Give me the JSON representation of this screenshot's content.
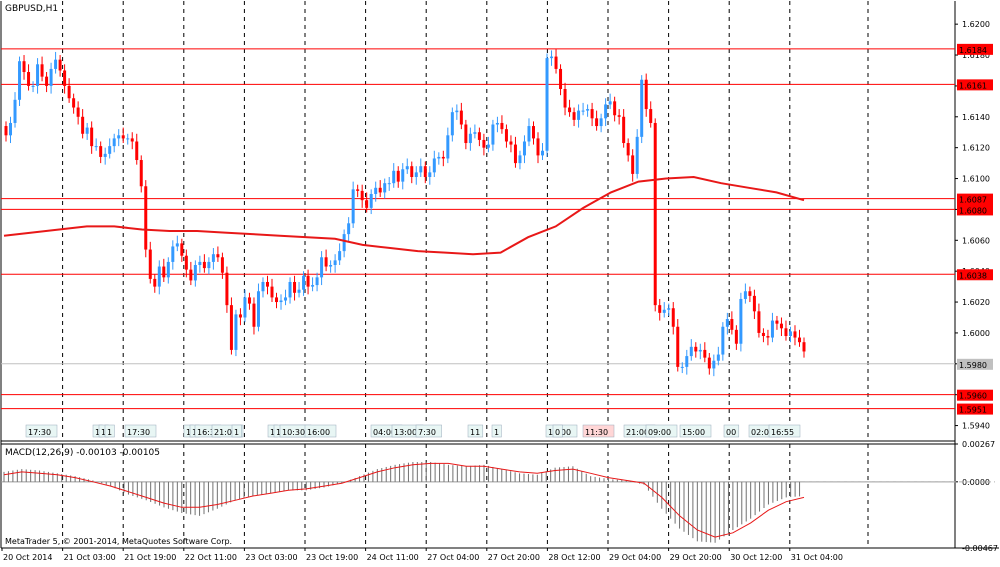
{
  "chart_data": [
    {
      "type": "candlestick",
      "title": "GBPUSD,H1",
      "ylim": [
        1.593,
        1.6215
      ],
      "y_ticks": [
        "1.6200",
        "1.6180",
        "1.6160",
        "1.6140",
        "1.6120",
        "1.6100",
        "1.6080",
        "1.6060",
        "1.6040",
        "1.6020",
        "1.6000",
        "1.5980",
        "1.5960",
        "1.5940"
      ],
      "x_ticks": [
        "20 Oct 2014",
        "21 Oct 03:00",
        "21 Oct 19:00",
        "22 Oct 11:00",
        "23 Oct 03:00",
        "23 Oct 19:00",
        "24 Oct 11:00",
        "27 Oct 04:00",
        "27 Oct 20:00",
        "28 Oct 12:00",
        "29 Oct 04:00",
        "29 Oct 20:00",
        "30 Oct 12:00",
        "31 Oct 04:00"
      ],
      "close": [
        1.6128,
        1.6136,
        1.6151,
        1.6176,
        1.6169,
        1.616,
        1.616,
        1.6174,
        1.6166,
        1.616,
        1.6171,
        1.6177,
        1.617,
        1.616,
        1.6152,
        1.6146,
        1.614,
        1.6129,
        1.6133,
        1.6121,
        1.6121,
        1.6114,
        1.6116,
        1.6121,
        1.6126,
        1.6128,
        1.6126,
        1.6126,
        1.6124,
        1.6112,
        1.6095,
        1.6054,
        1.6035,
        1.603,
        1.6043,
        1.6036,
        1.6046,
        1.6056,
        1.6058,
        1.605,
        1.6041,
        1.6034,
        1.6044,
        1.6046,
        1.6042,
        1.6046,
        1.6051,
        1.6049,
        1.6039,
        1.6018,
        1.5989,
        1.6012,
        1.601,
        1.6023,
        1.6019,
        1.6004,
        1.6027,
        1.6033,
        1.603,
        1.6023,
        1.602,
        1.6021,
        1.6023,
        1.6033,
        1.6026,
        1.6028,
        1.6037,
        1.603,
        1.6031,
        1.6036,
        1.6049,
        1.6043,
        1.6044,
        1.6047,
        1.6053,
        1.6064,
        1.6071,
        1.6093,
        1.6092,
        1.6086,
        1.6081,
        1.609,
        1.6094,
        1.6091,
        1.6097,
        1.6097,
        1.6105,
        1.6098,
        1.6106,
        1.6108,
        1.6101,
        1.6104,
        1.6108,
        1.6101,
        1.6104,
        1.6113,
        1.6114,
        1.6113,
        1.6128,
        1.6143,
        1.6144,
        1.6135,
        1.6123,
        1.6129,
        1.613,
        1.6125,
        1.612,
        1.6122,
        1.6135,
        1.6136,
        1.6132,
        1.6124,
        1.6122,
        1.611,
        1.6115,
        1.6124,
        1.6134,
        1.6126,
        1.6115,
        1.6118,
        1.6178,
        1.6179,
        1.6171,
        1.6158,
        1.6146,
        1.6143,
        1.6138,
        1.6144,
        1.6144,
        1.6145,
        1.6139,
        1.6134,
        1.6139,
        1.6148,
        1.615,
        1.6141,
        1.614,
        1.6123,
        1.6115,
        1.6103,
        1.6127,
        1.6164,
        1.6145,
        1.6136,
        1.6018,
        1.6013,
        1.6015,
        1.6016,
        1.6004,
        1.5978,
        1.5978,
        1.5985,
        1.5991,
        1.5988,
        1.5989,
        1.5984,
        1.5977,
        1.5982,
        1.5986,
        1.6004,
        1.6009,
        1.6002,
        1.5993,
        1.6022,
        1.6027,
        1.6024,
        1.6014,
        1.6,
        1.5998,
        1.5997,
        1.6008,
        1.6006,
        1.6003,
        1.5998,
        1.6001,
        1.5997,
        1.5994,
        1.5988
      ],
      "ma_values": [
        1.6063,
        1.6065,
        1.6067,
        1.6069,
        1.6069,
        1.6067,
        1.6066,
        1.6066,
        1.6065,
        1.6064,
        1.6063,
        1.6062,
        1.6061,
        1.6057,
        1.6055,
        1.6053,
        1.6052,
        1.6051,
        1.6052,
        1.6062,
        1.6069,
        1.6081,
        1.6091,
        1.6098,
        1.61,
        1.6101,
        1.6097,
        1.6094,
        1.6091,
        1.6086
      ],
      "levels": [
        "1.6184",
        "1.6161",
        "1.6087",
        "1.6080",
        "1.6038",
        "1.5960",
        "1.5951"
      ],
      "current_price": "1.5980",
      "period_labels": [
        "17:30",
        "1",
        "1",
        "1",
        "17:30",
        "1",
        "1",
        "16:3",
        "21:00",
        "1",
        "1",
        "17:00",
        "10:30",
        "16:00",
        "04:00",
        "13:00",
        "7:30",
        "11",
        "1",
        "19:00",
        "0",
        "11:30",
        "21:00",
        "09:00",
        "15:00",
        "00",
        "02:05",
        "16:55"
      ],
      "colors": {
        "bull": "#3399ff",
        "bear": "#ff0000",
        "ma": "#e81818",
        "level": "#ff0000",
        "grid": "#000000"
      }
    },
    {
      "type": "bar",
      "title": "MACD(12,26,9) -0.00103 -0.00105",
      "ylim": [
        -0.00467,
        0.00267
      ],
      "y_ticks": [
        "0.00267",
        "0.0000",
        "-0.00467"
      ],
      "histogram": [
        0.0007,
        0.0009,
        0.0008,
        0.0006,
        0.0004,
        0.0001,
        -0.0003,
        -0.0009,
        -0.0013,
        -0.0018,
        -0.0022,
        -0.0024,
        -0.0019,
        -0.0013,
        -0.001,
        -0.0008,
        -0.0006,
        -0.0006,
        -0.0004,
        -0.0001,
        0.0004,
        0.0009,
        0.0012,
        0.0014,
        0.0014,
        0.0012,
        0.0011,
        0.0012,
        0.0009,
        0.0006,
        0.0005,
        0.001,
        0.0011,
        0.0004,
        0.0002,
        0.0001,
        -0.0002,
        -0.0019,
        -0.0033,
        -0.0042,
        -0.0043,
        -0.0034,
        -0.0026,
        -0.0016,
        -0.0011,
        -0.001
      ],
      "signal": [
        0.0005,
        0.0007,
        0.0006,
        0.0005,
        0.0003,
        0.0,
        -0.0003,
        -0.0007,
        -0.0011,
        -0.0015,
        -0.0018,
        -0.0018,
        -0.0016,
        -0.0013,
        -0.001,
        -0.0008,
        -0.0006,
        -0.0005,
        -0.0003,
        -0.0001,
        0.0003,
        0.0007,
        0.001,
        0.0012,
        0.0013,
        0.0013,
        0.0011,
        0.0011,
        0.0009,
        0.0007,
        0.0006,
        0.0008,
        0.0009,
        0.0006,
        0.0003,
        0.0001,
        -0.0001,
        -0.0011,
        -0.0024,
        -0.0034,
        -0.0039,
        -0.0036,
        -0.0029,
        -0.002,
        -0.0014,
        -0.0011
      ]
    }
  ],
  "footer": "MetaTrader 5, © 2001-2014, MetaQuotes Software Corp."
}
